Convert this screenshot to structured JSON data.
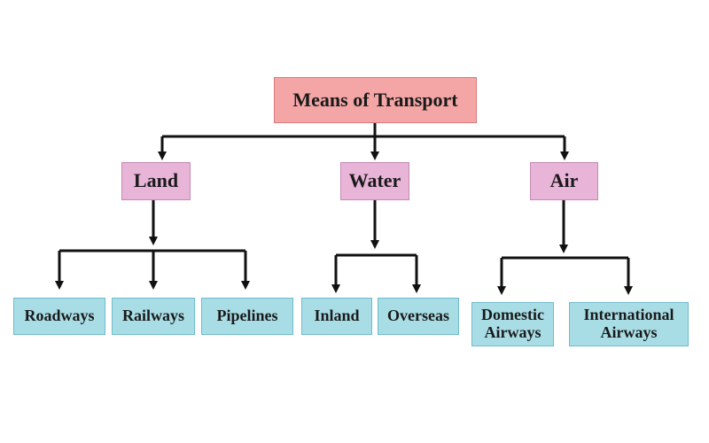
{
  "diagram": {
    "root": {
      "label": "Means of Transport"
    },
    "categories": [
      {
        "label": "Land"
      },
      {
        "label": "Water"
      },
      {
        "label": "Air"
      }
    ],
    "leaves": {
      "land": [
        "Roadways",
        "Railways",
        "Pipelines"
      ],
      "water": [
        "Inland",
        "Overseas"
      ],
      "air": [
        "Domestic\nAirways",
        "International\nAirways"
      ]
    }
  },
  "colors": {
    "root_fill": "#f4a6a6",
    "category_fill": "#e8b4d8",
    "leaf_fill": "#a8dde6",
    "connector": "#111111"
  }
}
